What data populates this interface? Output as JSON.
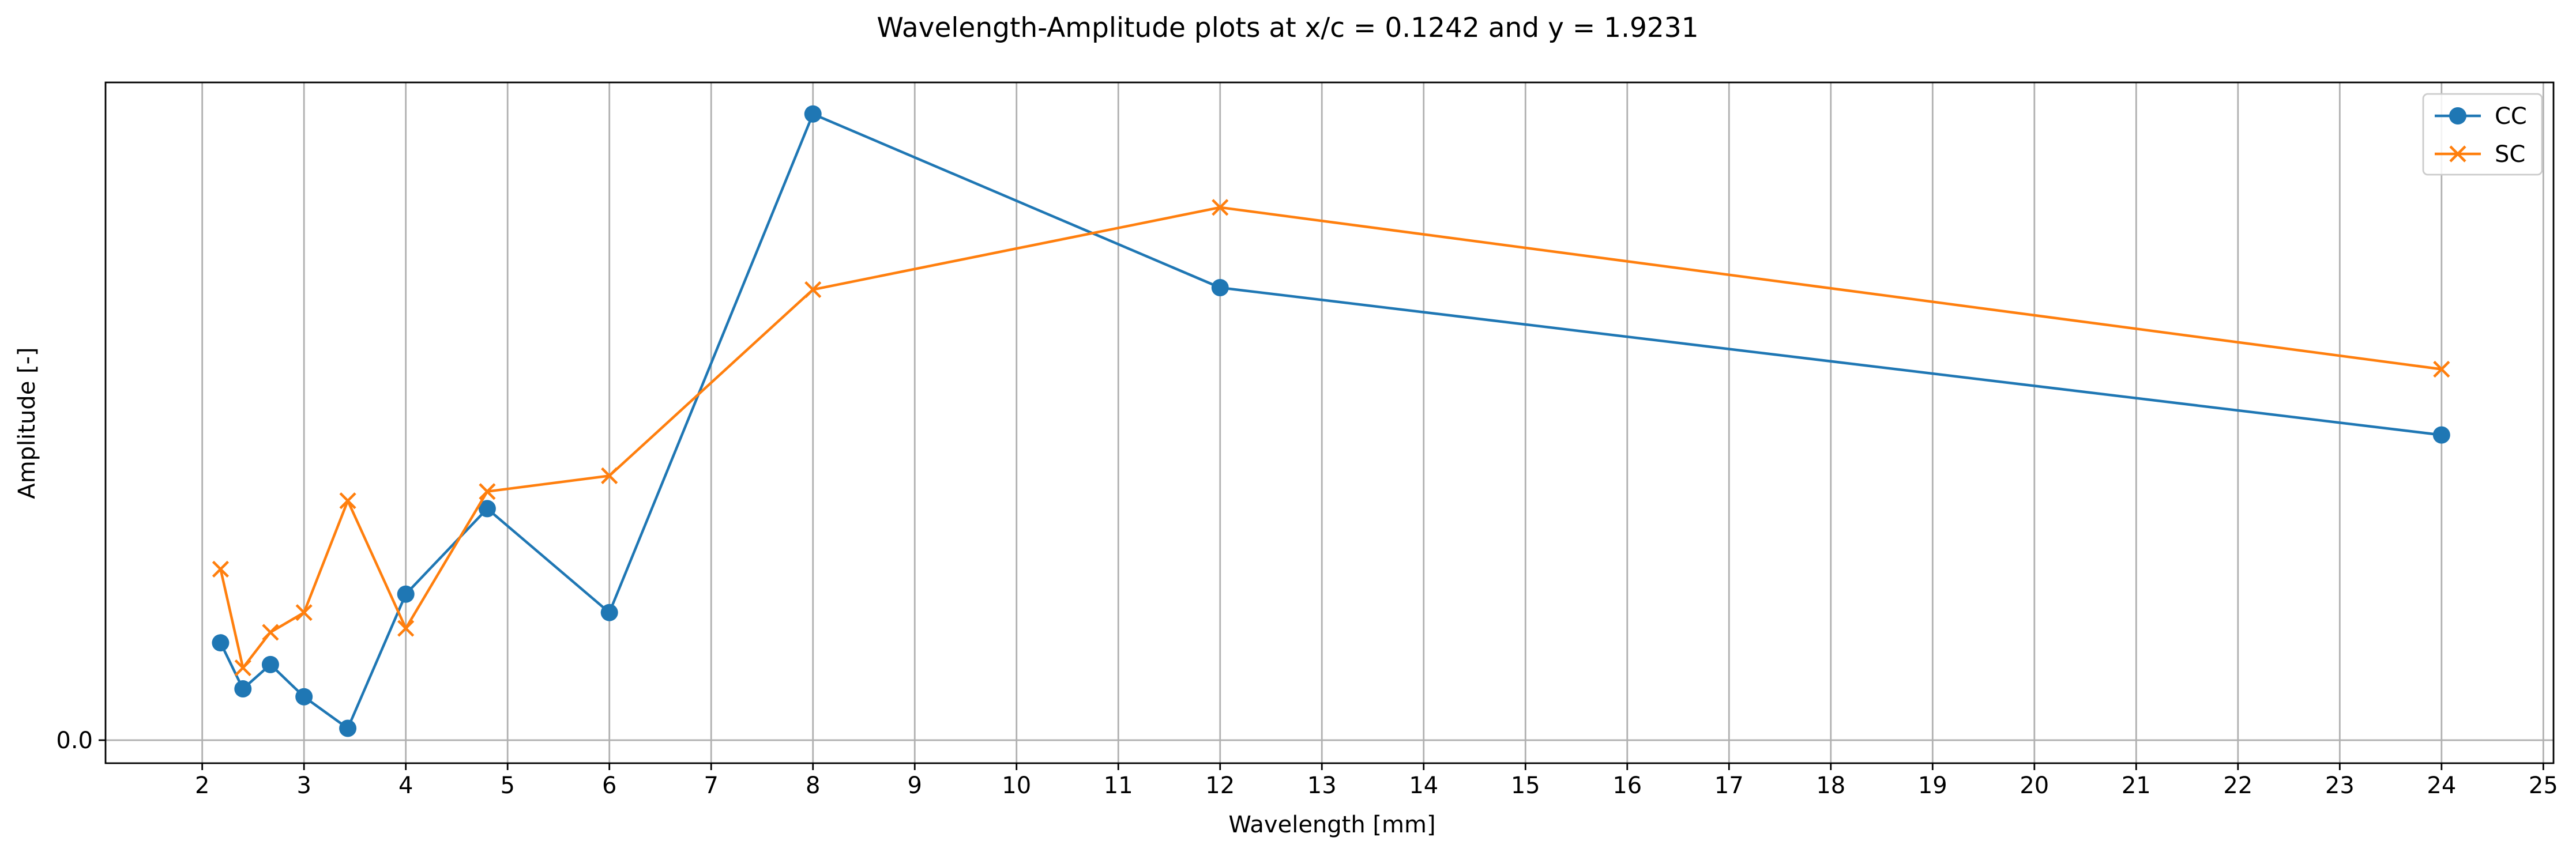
{
  "chart_data": {
    "type": "line",
    "title": "Wavelength-Amplitude plots at x/c = 0.1242 and y = 1.9231",
    "xlabel": "Wavelength [mm]",
    "ylabel": "Amplitude [-]",
    "xlim": [
      1.05,
      25.1
    ],
    "ylim": [
      -0.035,
      1.0
    ],
    "xticks": [
      2,
      3,
      4,
      5,
      6,
      7,
      8,
      9,
      10,
      11,
      12,
      13,
      14,
      15,
      16,
      17,
      18,
      19,
      20,
      21,
      22,
      23,
      24,
      25
    ],
    "yticks": [
      0.0
    ],
    "ytick_labels": [
      "0.0"
    ],
    "grid": "x-major",
    "legend_position": "upper right",
    "series": [
      {
        "name": "CC",
        "color": "#1f77b4",
        "marker": "circle",
        "x": [
          2.18,
          2.4,
          2.67,
          3.0,
          3.43,
          4.0,
          4.8,
          6.0,
          8.0,
          12.0,
          24.0
        ],
        "y": [
          0.148,
          0.078,
          0.115,
          0.066,
          0.018,
          0.222,
          0.352,
          0.194,
          0.952,
          0.688,
          0.464
        ]
      },
      {
        "name": "SC",
        "color": "#ff7f0e",
        "marker": "x",
        "x": [
          2.18,
          2.4,
          2.67,
          3.0,
          3.43,
          4.0,
          4.8,
          6.0,
          8.0,
          12.0,
          24.0
        ],
        "y": [
          0.26,
          0.11,
          0.164,
          0.194,
          0.364,
          0.17,
          0.378,
          0.402,
          0.685,
          0.81,
          0.564
        ]
      }
    ]
  }
}
